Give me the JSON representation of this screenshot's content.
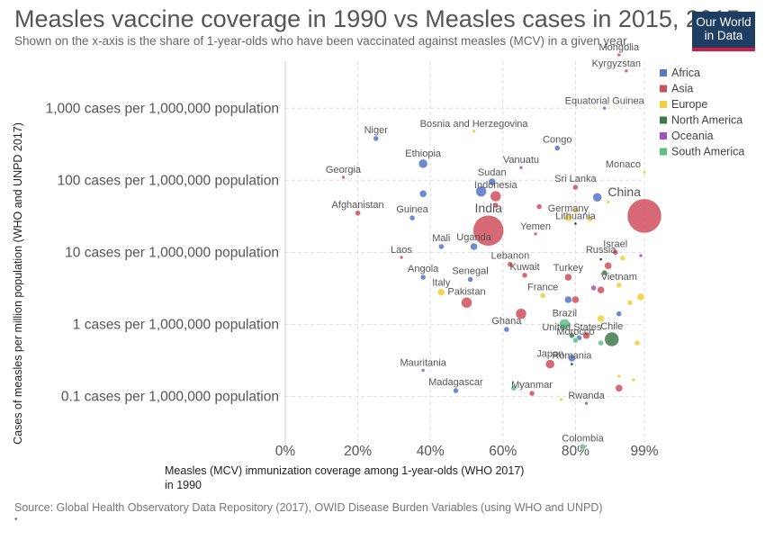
{
  "header": {
    "title": "Measles vaccine coverage in 1990 vs Measles cases in 2015, 2015",
    "subtitle": "Shown on the x-axis is the share of 1-year-olds who have been vaccinated against measles (MCV) in a given year.",
    "logo_line1": "Our World",
    "logo_line2": "in Data"
  },
  "footer": {
    "source": "Source: Global Health Observatory Data Repository (2017), OWID Disease Burden Variables (using WHO and UNPD)",
    "mark": "•"
  },
  "colors": {
    "Africa": "#5676c6",
    "Asia": "#cf4f5b",
    "Europe": "#f2cf3a",
    "North America": "#3f7a4a",
    "Oceania": "#a052c4",
    "South America": "#5cc283"
  },
  "chart_data": {
    "type": "scatter",
    "title": "Measles vaccine coverage in 1990 vs Measles cases in 2015, 2015",
    "xlabel": "Measles (MCV) immunization coverage among 1-year-olds (WHO 2017) in 1990",
    "ylabel": "Cases of measles per million population (WHO and UNPD 2017)",
    "xlim": [
      0,
      99
    ],
    "x_ticks": [
      {
        "value": 0,
        "label": "0%"
      },
      {
        "value": 20,
        "label": "20%"
      },
      {
        "value": 40,
        "label": "40%"
      },
      {
        "value": 60,
        "label": "60%"
      },
      {
        "value": 80,
        "label": "80%"
      },
      {
        "value": 99,
        "label": "99%"
      }
    ],
    "y_scale": "log",
    "ylim": [
      0.018,
      4500
    ],
    "y_ticks": [
      {
        "value": 0.1,
        "label": "0.1 cases per 1,000,000 population"
      },
      {
        "value": 1,
        "label": "1 cases per 1,000,000 population"
      },
      {
        "value": 10,
        "label": "10 cases per 1,000,000 population"
      },
      {
        "value": 100,
        "label": "100 cases per 1,000,000 population"
      },
      {
        "value": 1000,
        "label": "1,000 cases per 1,000,000 population"
      }
    ],
    "grid": true,
    "legend_position": "right",
    "series": [
      {
        "name": "Africa",
        "points": [
          {
            "label": "Niger",
            "x": 25,
            "y": 380,
            "size": 3
          },
          {
            "label": "Ethiopia",
            "x": 38,
            "y": 170,
            "size": 5
          },
          {
            "label": "Congo",
            "x": 75,
            "y": 280,
            "size": 3
          },
          {
            "label": "Equatorial Guinea",
            "x": 88,
            "y": 1000,
            "size": 2
          },
          {
            "label": "Sudan",
            "x": 57,
            "y": 95,
            "size": 4
          },
          {
            "label": "Guinea",
            "x": 35,
            "y": 30,
            "size": 3
          },
          {
            "label": "Mali",
            "x": 43,
            "y": 12,
            "size": 3
          },
          {
            "label": "Uganda",
            "x": 52,
            "y": 12,
            "size": 4
          },
          {
            "label": "Angola",
            "x": 38,
            "y": 4.5,
            "size": 3
          },
          {
            "label": "Senegal",
            "x": 51,
            "y": 4.2,
            "size": 3
          },
          {
            "label": "Ghana",
            "x": 61,
            "y": 0.85,
            "size": 3
          },
          {
            "label": "Mauritania",
            "x": 38,
            "y": 0.23,
            "size": 2
          },
          {
            "label": "Madagascar",
            "x": 47,
            "y": 0.12,
            "size": 3
          },
          {
            "label": "Rwanda",
            "x": 83,
            "y": 0.08,
            "size": 2
          },
          {
            "label": "",
            "x": 38,
            "y": 65,
            "size": 4
          },
          {
            "label": "",
            "x": 54,
            "y": 70,
            "size": 6
          },
          {
            "label": "",
            "x": 86,
            "y": 58,
            "size": 5
          },
          {
            "label": "",
            "x": 79,
            "y": 0.34,
            "size": 4
          },
          {
            "label": "",
            "x": 78,
            "y": 2.2,
            "size": 4
          },
          {
            "label": "",
            "x": 81,
            "y": 0.65,
            "size": 3
          },
          {
            "label": "",
            "x": 92,
            "y": 1.4,
            "size": 3
          }
        ]
      },
      {
        "name": "Asia",
        "points": [
          {
            "label": "Mongolia",
            "x": 92,
            "y": 5500,
            "size": 2
          },
          {
            "label": "Kyrgyzstan",
            "x": 94,
            "y": 3300,
            "size": 2
          },
          {
            "label": "Georgia",
            "x": 16,
            "y": 110,
            "size": 2
          },
          {
            "label": "Afghanistan",
            "x": 20,
            "y": 35,
            "size": 3
          },
          {
            "label": "Indonesia",
            "x": 58,
            "y": 60,
            "size": 6
          },
          {
            "label": "India",
            "x": 56,
            "y": 20,
            "size": 17
          },
          {
            "label": "China",
            "x": 99,
            "y": 32,
            "size": 19
          },
          {
            "label": "Sri Lanka",
            "x": 80,
            "y": 80,
            "size": 3
          },
          {
            "label": "Yemen",
            "x": 69,
            "y": 18,
            "size": 2
          },
          {
            "label": "Laos",
            "x": 32,
            "y": 8.5,
            "size": 2
          },
          {
            "label": "Lebanon",
            "x": 62,
            "y": 6.8,
            "size": 3
          },
          {
            "label": "Kuwait",
            "x": 66,
            "y": 4.8,
            "size": 3
          },
          {
            "label": "Pakistan",
            "x": 50,
            "y": 2,
            "size": 6
          },
          {
            "label": "Turkey",
            "x": 78,
            "y": 4.5,
            "size": 4
          },
          {
            "label": "Japan",
            "x": 73,
            "y": 0.28,
            "size": 5
          },
          {
            "label": "Myanmar",
            "x": 68,
            "y": 0.11,
            "size": 3
          },
          {
            "label": "Israel",
            "x": 91,
            "y": 10,
            "size": 3
          },
          {
            "label": "",
            "x": 65,
            "y": 1.4,
            "size": 6
          },
          {
            "label": "",
            "x": 80,
            "y": 2.2,
            "size": 4
          },
          {
            "label": "",
            "x": 83,
            "y": 0.7,
            "size": 4
          },
          {
            "label": "",
            "x": 89,
            "y": 6.5,
            "size": 4
          },
          {
            "label": "",
            "x": 92,
            "y": 0.13,
            "size": 4
          },
          {
            "label": "",
            "x": 87,
            "y": 3,
            "size": 4
          },
          {
            "label": "",
            "x": 70,
            "y": 43,
            "size": 3
          },
          {
            "label": "",
            "x": 58,
            "y": 45,
            "size": 3
          }
        ]
      },
      {
        "name": "Europe",
        "points": [
          {
            "label": "Bosnia and Herzegovina",
            "x": 52,
            "y": 480,
            "size": 2
          },
          {
            "label": "Monaco",
            "x": 99,
            "y": 130,
            "size": 2
          },
          {
            "label": "Germany",
            "x": 78,
            "y": 30,
            "size": 4
          },
          {
            "label": "Italy",
            "x": 43,
            "y": 2.8,
            "size": 4
          },
          {
            "label": "France",
            "x": 71,
            "y": 2.5,
            "size": 3
          },
          {
            "label": "Vietnam",
            "x": 92,
            "y": 3.5,
            "size": 3
          },
          {
            "label": "",
            "x": 87,
            "y": 1.2,
            "size": 4
          },
          {
            "label": "",
            "x": 95,
            "y": 2,
            "size": 3
          },
          {
            "label": "",
            "x": 98,
            "y": 2.4,
            "size": 4
          },
          {
            "label": "",
            "x": 93,
            "y": 8.3,
            "size": 3
          },
          {
            "label": "",
            "x": 97,
            "y": 0.55,
            "size": 3
          },
          {
            "label": "",
            "x": 76,
            "y": 0.09,
            "size": 2
          },
          {
            "label": "",
            "x": 92,
            "y": 0.19,
            "size": 2
          },
          {
            "label": "",
            "x": 96,
            "y": 0.17,
            "size": 2
          },
          {
            "label": "",
            "x": 80,
            "y": 38,
            "size": 3
          },
          {
            "label": "",
            "x": 84,
            "y": 29,
            "size": 3
          },
          {
            "label": "",
            "x": 89,
            "y": 50,
            "size": 2
          }
        ]
      },
      {
        "name": "North America",
        "points": [
          {
            "label": "Chile",
            "x": 90,
            "y": 0.62,
            "size": 8
          },
          {
            "label": "United States",
            "x": 79,
            "y": 0.7,
            "size": 3
          },
          {
            "label": "",
            "x": 88,
            "y": 5.2,
            "size": 3
          }
        ]
      },
      {
        "name": "Oceania",
        "points": [
          {
            "label": "Vanuatu",
            "x": 65,
            "y": 150,
            "size": 2
          },
          {
            "label": "",
            "x": 85,
            "y": 3.2,
            "size": 3
          },
          {
            "label": "",
            "x": 98,
            "y": 9,
            "size": 2
          }
        ]
      },
      {
        "name": "South America",
        "points": [
          {
            "label": "Brazil",
            "x": 77,
            "y": 1,
            "size": 6
          },
          {
            "label": "Colombia",
            "x": 82,
            "y": 0.02,
            "size": 3
          },
          {
            "label": "Morocco",
            "x": 80,
            "y": 0.6,
            "size": 3
          },
          {
            "label": "",
            "x": 63,
            "y": 0.13,
            "size": 3
          },
          {
            "label": "",
            "x": 87,
            "y": 0.55,
            "size": 3
          }
        ]
      },
      {
        "name": "",
        "points": [
          {
            "label": "Lithuania",
            "x": 80,
            "y": 25,
            "size": 2
          },
          {
            "label": "Russia",
            "x": 87,
            "y": 8,
            "size": 4
          },
          {
            "label": "Romania",
            "x": 79,
            "y": 0.28,
            "size": 3
          }
        ]
      }
    ]
  }
}
